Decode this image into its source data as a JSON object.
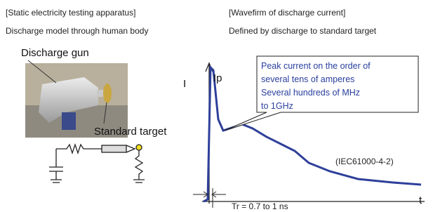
{
  "left": {
    "heading": "[Static electricity testing apparatus]",
    "subheading": "Discharge model through human body",
    "gun_label": "Discharge gun",
    "target_label": "Standard target"
  },
  "right": {
    "heading": "[Wavefirm of discharge current]",
    "subheading": "Defined by discharge to standard target",
    "y_axis_label": "I",
    "peak_label": "Ip",
    "callout": [
      "Peak current on the order of",
      "several tens of amperes",
      "Several hundreds of MHz",
      "to 1GHz"
    ],
    "standard": "(IEC61000-4-2)",
    "x_axis_label": "t",
    "rise_time": "Tr = 0.7 to 1 ns"
  }
}
